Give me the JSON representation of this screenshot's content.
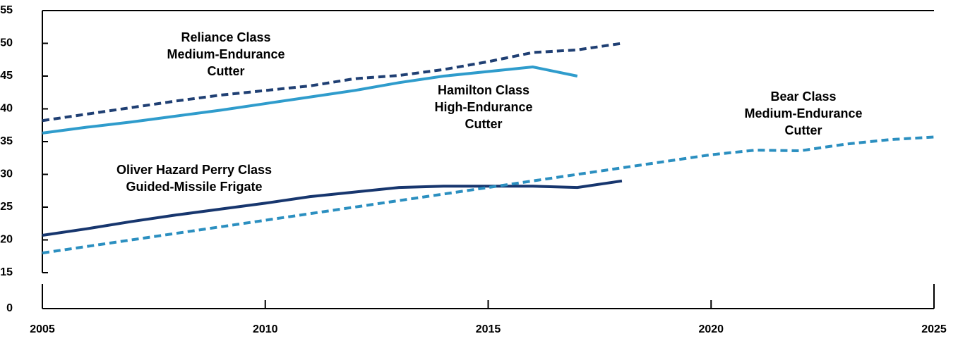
{
  "chart_data": {
    "type": "line",
    "x": [
      2005,
      2006,
      2007,
      2008,
      2009,
      2010,
      2011,
      2012,
      2013,
      2014,
      2015,
      2016,
      2017,
      2018,
      2019,
      2020,
      2021,
      2022,
      2023,
      2024,
      2025
    ],
    "series": [
      {
        "name": "Reliance Class Medium-Endurance Cutter",
        "color": "#1f3f73",
        "dashed": true,
        "values": [
          38.2,
          39.2,
          40.2,
          41.2,
          42.1,
          42.8,
          43.5,
          44.6,
          45.1,
          46.0,
          47.2,
          48.6,
          49.0,
          50.0,
          null,
          null,
          null,
          null,
          null,
          null,
          null
        ]
      },
      {
        "name": "Hamilton Class High-Endurance Cutter",
        "color": "#2f9ccc",
        "dashed": false,
        "values": [
          36.3,
          37.2,
          38.0,
          38.9,
          39.8,
          40.8,
          41.8,
          42.8,
          44.0,
          45.0,
          45.7,
          46.4,
          45.0,
          null,
          null,
          null,
          null,
          null,
          null,
          null,
          null
        ]
      },
      {
        "name": "Oliver Hazard Perry Class Guided-Missile Frigate",
        "color": "#17366e",
        "dashed": false,
        "values": [
          20.7,
          21.7,
          22.8,
          23.8,
          24.7,
          25.6,
          26.6,
          27.3,
          28.0,
          28.2,
          28.2,
          28.2,
          28.0,
          29.0,
          null,
          null,
          null,
          null,
          null,
          null,
          null
        ]
      },
      {
        "name": "Bear Class Medium-Endurance Cutter",
        "color": "#2b8fc0",
        "dashed": true,
        "values": [
          18.0,
          19.0,
          20.0,
          21.0,
          22.0,
          23.0,
          24.0,
          25.0,
          26.0,
          27.0,
          28.0,
          29.0,
          30.0,
          31.0,
          32.0,
          33.0,
          33.7,
          33.6,
          34.6,
          35.3,
          35.7
        ]
      }
    ],
    "annotations": [
      [
        "Reliance Class",
        "Medium-Endurance",
        "Cutter"
      ],
      [
        "Hamilton Class",
        "High-Endurance",
        "Cutter"
      ],
      [
        "Bear Class",
        "Medium-Endurance",
        "Cutter"
      ],
      [
        "Oliver Hazard Perry Class",
        "Guided-Missile Frigate"
      ]
    ],
    "xlim": [
      2005,
      2025
    ],
    "xticks": [
      2005,
      2010,
      2015,
      2020,
      2025
    ],
    "ylim": [
      15,
      55
    ],
    "yticks": [
      0,
      15,
      20,
      25,
      30,
      35,
      40,
      45,
      50,
      55
    ],
    "axis_break": true
  }
}
